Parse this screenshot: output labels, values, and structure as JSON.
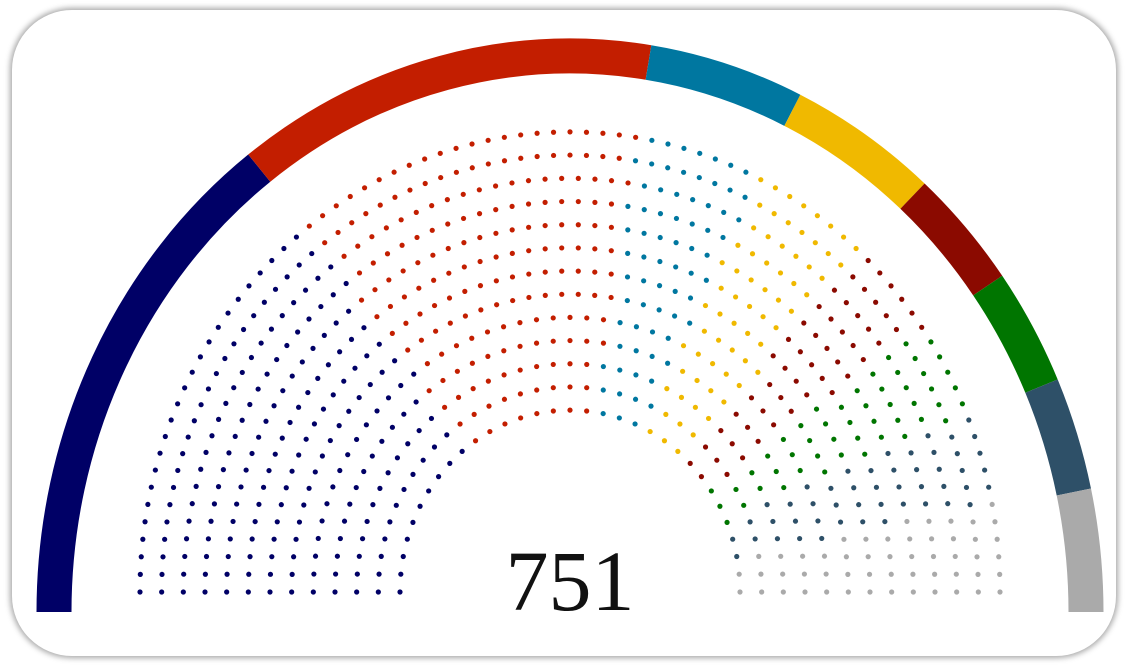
{
  "chart_data": {
    "type": "parliament",
    "total": 751,
    "values": [
      221,
      191,
      70,
      67,
      52,
      50,
      48,
      52
    ],
    "colors": [
      "#000066",
      "#c31e00",
      "#0077a0",
      "#f0b900",
      "#8b0a00",
      "#007500",
      "#2e5068",
      "#aaaaaa"
    ]
  }
}
